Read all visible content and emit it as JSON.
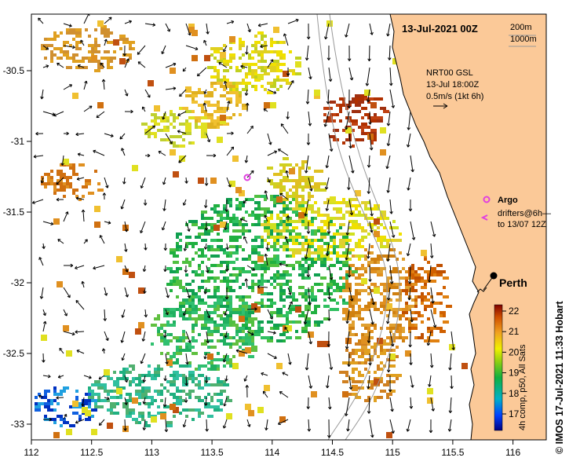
{
  "map": {
    "date_title": "13-Jul-2021 00Z",
    "contours": [
      "200m",
      "1000m"
    ],
    "current_source": [
      "NRT00 GSL",
      "13-Jul 18:00Z",
      "0.5m/s (1kt 6h)"
    ],
    "x_ticks": [
      "112",
      "112.5",
      "113",
      "113.5",
      "114",
      "114.5",
      "115",
      "115.5",
      "116"
    ],
    "y_ticks": [
      "-30.5",
      "-31",
      "-31.5",
      "-32",
      "-32.5",
      "-33"
    ],
    "city": "Perth",
    "legend": {
      "argo": "Argo",
      "drifters_line1": "drifters@6h—",
      "drifters_line2": "to 13/07 12Z"
    },
    "colorbar": {
      "labels": [
        "22",
        "21",
        "20",
        "19",
        "18",
        "17"
      ],
      "title": "4h comp, p50, All Sats"
    },
    "credit": "© IMOS 17-Jul-2021 11:33 Hobart",
    "colors": {
      "land": "#fbc998",
      "marker": "#e040e0"
    }
  }
}
